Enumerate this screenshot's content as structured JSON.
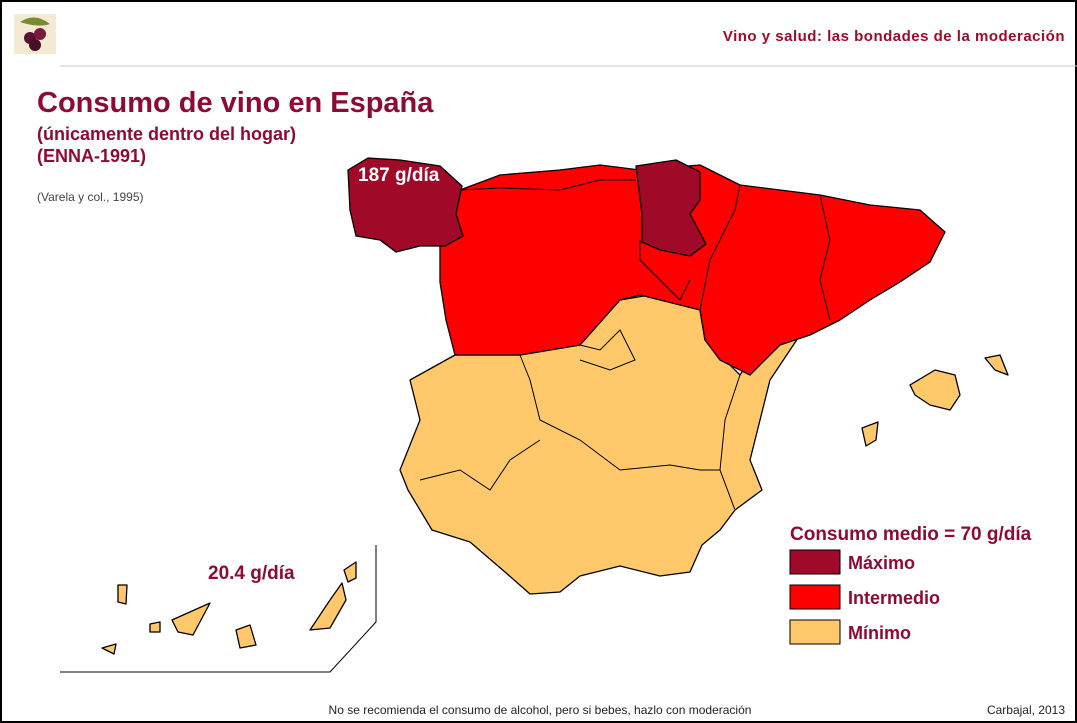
{
  "header": {
    "title": "Vino y salud: las bondades de la moderación"
  },
  "title": "Consumo de vino en España",
  "subtitle": [
    "(únicamente dentro del hogar)",
    "(ENNA-1991)"
  ],
  "source": "(Varela y col., 1995)",
  "annotations": [
    "187 g/día",
    "20.4 g/día"
  ],
  "legend": {
    "title": "Consumo medio = 70 g/día",
    "items": [
      {
        "label": "Máximo",
        "color": "#a00a28"
      },
      {
        "label": "Intermedio",
        "color": "#ff0000"
      },
      {
        "label": "Mínimo",
        "color": "#ffc96b"
      }
    ]
  },
  "footer": {
    "note": "No se recomienda el consumo de alcohol, pero si bebes, hazlo con moderación",
    "credit": "Carbajal, 2013"
  }
}
